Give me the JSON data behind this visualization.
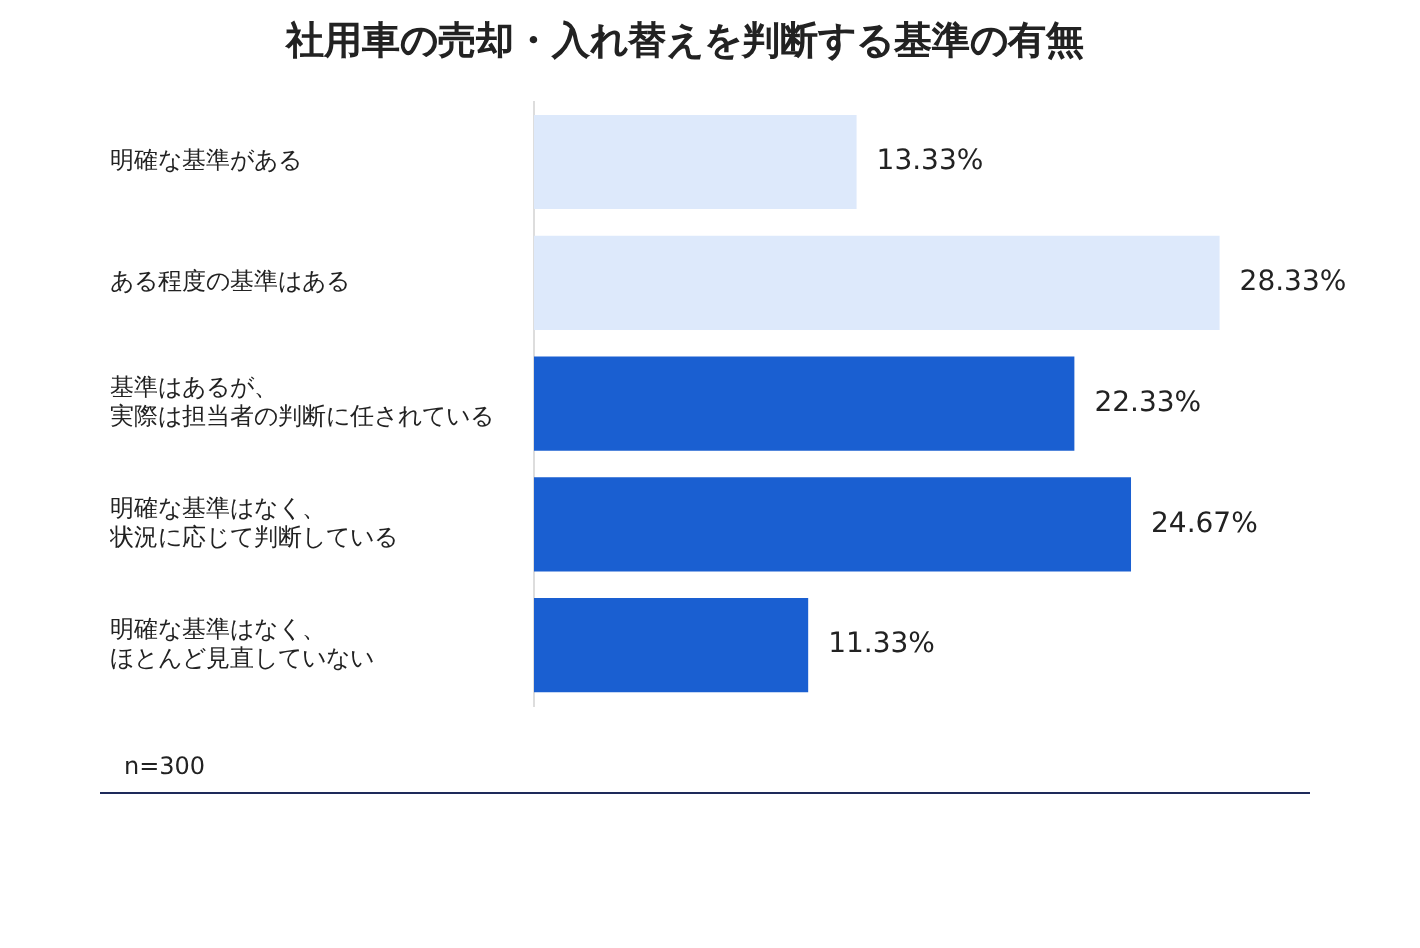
{
  "chart_data": {
    "type": "bar",
    "orientation": "horizontal",
    "title": "社用車の売却・入れ替えを判断する基準の有無",
    "categories": [
      "明確な基準がある",
      "ある程度の基準はある",
      "基準はあるが、実際は担当者の判断に任されている",
      "明確な基準はなく、状況に応じて判断している",
      "明確な基準はなく、ほとんど見直していない"
    ],
    "values": [
      13.33,
      28.33,
      22.33,
      24.67,
      11.33
    ],
    "colors": [
      "#dde9fb",
      "#dde9fb",
      "#1a5fd1",
      "#1a5fd1",
      "#1a5fd1"
    ],
    "value_labels": [
      "13.33%",
      "28.33%",
      "22.33%",
      "24.67%",
      "11.33%"
    ],
    "legend": false,
    "tick_labels": "y",
    "annotations": [
      "n=300"
    ]
  }
}
